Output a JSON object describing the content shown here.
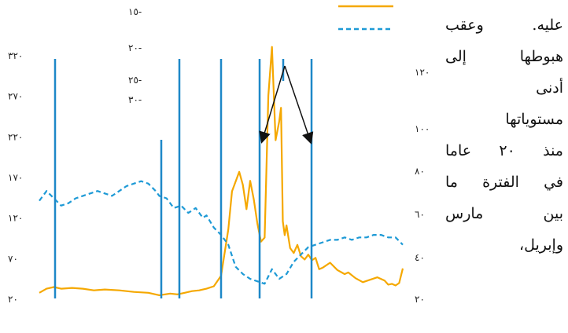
{
  "paragraph": {
    "lines": [
      "عليه. وعقب",
      "هبوطها إلى",
      "أدنى",
      "مستوياتها",
      "منذ ٢٠ عاما",
      "في الفترة ما",
      "بين مارس",
      "وإبريل،"
    ]
  },
  "chart_data": {
    "type": "line",
    "title": "",
    "xlabel": "",
    "ylabel": "",
    "left_axis": {
      "ticks": [
        "٢٠",
        "٧٠",
        "١٢٠",
        "١٧٠",
        "٢٢٠",
        "٢٧٠",
        "٣٢٠"
      ],
      "ylim": [
        20,
        320
      ]
    },
    "right_axis": {
      "ticks": [
        "٢٠",
        "٤٠",
        "٦٠",
        "٨٠",
        "١٠٠",
        "١٢٠"
      ],
      "ylim": [
        20,
        120
      ]
    },
    "inset_axis": {
      "ticks": [
        "١٥-",
        "٢٠-",
        "٢٥-",
        "٣٠-"
      ]
    },
    "series": [
      {
        "name": "",
        "axis": "left",
        "color": "#f5a800",
        "style": "solid",
        "x": [
          0,
          2,
          4,
          6,
          9,
          12,
          15,
          18,
          22,
          26,
          30,
          33,
          36,
          38,
          40,
          42,
          44,
          46,
          48,
          50,
          52,
          53,
          55,
          56,
          57,
          58,
          59,
          60,
          61,
          62,
          63,
          64,
          65,
          66,
          66.5,
          67,
          67.5,
          68,
          69,
          70,
          71,
          72,
          73,
          74,
          75,
          76,
          77,
          78,
          80,
          82,
          84,
          85,
          87,
          89,
          91,
          93,
          95,
          96,
          97,
          98,
          99,
          100
        ],
        "values": [
          27,
          32,
          34,
          32,
          33,
          32,
          30,
          31,
          30,
          28,
          27,
          24,
          26,
          25,
          27,
          29,
          30,
          32,
          35,
          48,
          105,
          152,
          176,
          160,
          130,
          165,
          142,
          112,
          90,
          95,
          270,
          330,
          215,
          238,
          255,
          115,
          98,
          110,
          82,
          76,
          86,
          72,
          68,
          74,
          67,
          70,
          56,
          58,
          64,
          55,
          50,
          52,
          45,
          40,
          43,
          46,
          42,
          37,
          38,
          36,
          39,
          57
        ]
      },
      {
        "name": "",
        "axis": "right",
        "color": "#1e9ad6",
        "style": "dashed",
        "x": [
          0,
          2,
          4,
          6,
          8,
          10,
          12,
          14,
          16,
          18,
          20,
          22,
          24,
          26,
          28,
          30,
          32,
          33,
          35,
          37,
          39,
          41,
          43,
          45,
          46,
          48,
          50,
          52,
          54,
          56,
          58,
          60,
          62,
          64,
          66,
          68,
          70,
          72,
          74,
          76,
          78,
          80,
          82,
          84,
          86,
          88,
          90,
          92,
          94,
          96,
          98,
          100
        ],
        "values": [
          60,
          64,
          61,
          58,
          59,
          61,
          62,
          63,
          64,
          63,
          62,
          64,
          66,
          67,
          68,
          67,
          64,
          62,
          61,
          57,
          58,
          55,
          57,
          53,
          54,
          49,
          46,
          42,
          33,
          30,
          28,
          27,
          26,
          32,
          28,
          30,
          35,
          38,
          41,
          42,
          43,
          44,
          44,
          45,
          44,
          45,
          45,
          46,
          46,
          45,
          45,
          42
        ]
      }
    ],
    "vertical_markers": {
      "color": "#1e88c8",
      "count": 7
    },
    "annotation_arrows": 2,
    "legend": {
      "position": "top-right",
      "entries": 2
    }
  }
}
